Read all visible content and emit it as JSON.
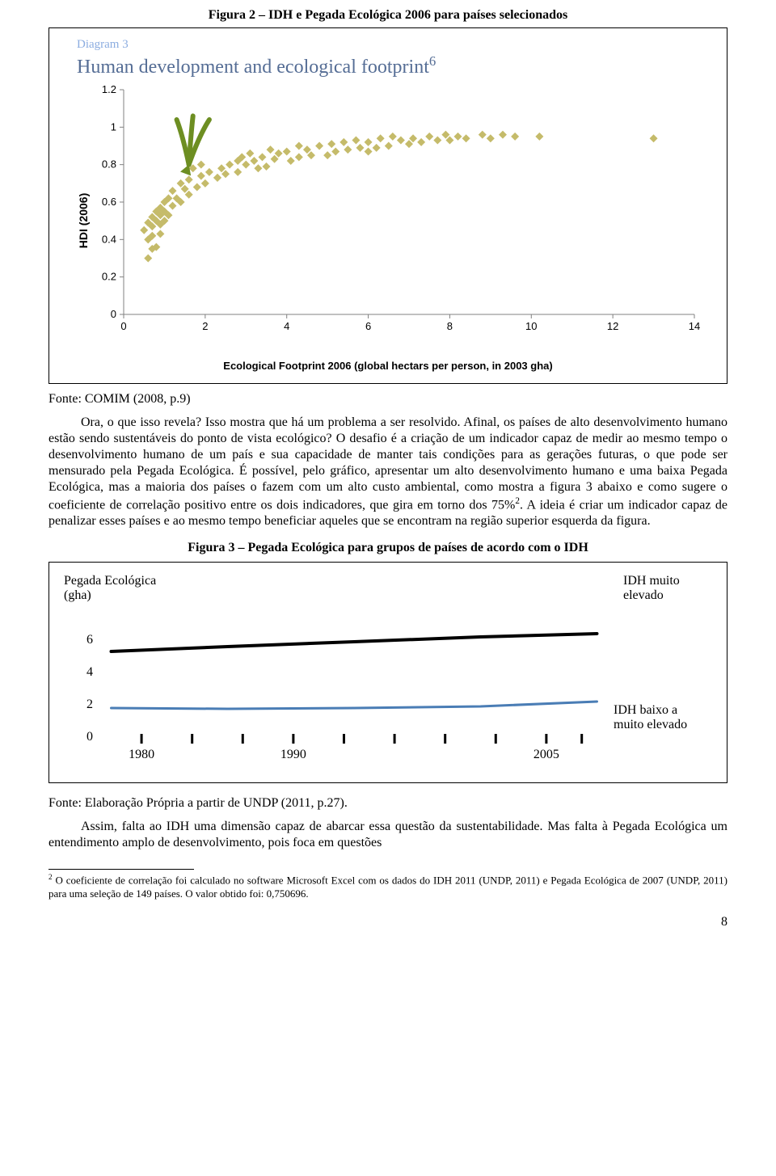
{
  "figure2": {
    "title": "Figura 2 – IDH e Pegada Ecológica 2006 para países selecionados",
    "source": "Fonte: COMIM (2008, p.9)",
    "diagram_label": "Diagram 3",
    "diagram_title_line1": "Human development and ecological footprint",
    "diagram_sup": "6",
    "ylabel": "HDI (2006)",
    "xlabel": "Ecological Footprint 2006 (global hectars per person, in 2003 gha)",
    "chart": {
      "type": "scatter",
      "xlim": [
        0,
        14
      ],
      "ylim": [
        0,
        1.2
      ],
      "xticks": [
        0,
        2,
        4,
        6,
        8,
        10,
        12,
        14
      ],
      "yticks": [
        0,
        0.2,
        0.4,
        0.6,
        0.8,
        1,
        1.2
      ],
      "tick_font_family": "Arial",
      "tick_fontsize": 13,
      "tick_color": "#000000",
      "axis_color": "#808080",
      "tick_mark_len": 5,
      "marker": "diamond",
      "marker_size": 10,
      "marker_color": "#c5bb6a",
      "background_color": "#ffffff",
      "arrow_color": "#6d8e22",
      "arrow_stroke_width": 6,
      "arrow_tails": [
        [
          2.1,
          1.04
        ],
        [
          1.7,
          1.06
        ],
        [
          1.3,
          1.04
        ]
      ],
      "arrow_head": [
        1.6,
        0.8
      ],
      "points": [
        [
          0.6,
          0.3
        ],
        [
          0.7,
          0.35
        ],
        [
          0.8,
          0.36
        ],
        [
          0.6,
          0.4
        ],
        [
          0.7,
          0.42
        ],
        [
          0.9,
          0.43
        ],
        [
          0.5,
          0.45
        ],
        [
          0.7,
          0.47
        ],
        [
          0.9,
          0.48
        ],
        [
          0.6,
          0.49
        ],
        [
          0.8,
          0.5
        ],
        [
          1.0,
          0.5
        ],
        [
          0.7,
          0.52
        ],
        [
          0.9,
          0.53
        ],
        [
          1.1,
          0.53
        ],
        [
          0.8,
          0.55
        ],
        [
          1.0,
          0.55
        ],
        [
          0.9,
          0.57
        ],
        [
          1.2,
          0.58
        ],
        [
          1.0,
          0.6
        ],
        [
          1.4,
          0.6
        ],
        [
          1.1,
          0.62
        ],
        [
          1.3,
          0.62
        ],
        [
          1.6,
          0.64
        ],
        [
          1.2,
          0.66
        ],
        [
          1.5,
          0.67
        ],
        [
          1.8,
          0.68
        ],
        [
          1.4,
          0.7
        ],
        [
          2.0,
          0.7
        ],
        [
          1.6,
          0.72
        ],
        [
          2.3,
          0.73
        ],
        [
          1.9,
          0.74
        ],
        [
          2.5,
          0.75
        ],
        [
          2.1,
          0.76
        ],
        [
          2.8,
          0.76
        ],
        [
          2.4,
          0.78
        ],
        [
          1.7,
          0.78
        ],
        [
          3.3,
          0.78
        ],
        [
          2.6,
          0.8
        ],
        [
          3.0,
          0.8
        ],
        [
          1.9,
          0.8
        ],
        [
          3.5,
          0.79
        ],
        [
          2.8,
          0.82
        ],
        [
          3.2,
          0.82
        ],
        [
          3.7,
          0.83
        ],
        [
          2.3,
          0.73
        ],
        [
          4.1,
          0.82
        ],
        [
          3.4,
          0.84
        ],
        [
          2.9,
          0.84
        ],
        [
          4.3,
          0.84
        ],
        [
          3.8,
          0.86
        ],
        [
          4.6,
          0.85
        ],
        [
          3.1,
          0.86
        ],
        [
          5.0,
          0.85
        ],
        [
          4.0,
          0.87
        ],
        [
          5.2,
          0.87
        ],
        [
          4.5,
          0.88
        ],
        [
          5.5,
          0.88
        ],
        [
          3.6,
          0.88
        ],
        [
          6.0,
          0.87
        ],
        [
          4.8,
          0.9
        ],
        [
          5.8,
          0.89
        ],
        [
          6.2,
          0.89
        ],
        [
          5.1,
          0.91
        ],
        [
          6.5,
          0.9
        ],
        [
          4.3,
          0.9
        ],
        [
          5.4,
          0.92
        ],
        [
          7.0,
          0.91
        ],
        [
          6.0,
          0.92
        ],
        [
          7.3,
          0.92
        ],
        [
          5.7,
          0.93
        ],
        [
          6.8,
          0.93
        ],
        [
          7.7,
          0.93
        ],
        [
          6.3,
          0.94
        ],
        [
          8.0,
          0.93
        ],
        [
          7.1,
          0.94
        ],
        [
          8.4,
          0.94
        ],
        [
          6.6,
          0.95
        ],
        [
          7.5,
          0.95
        ],
        [
          9.0,
          0.94
        ],
        [
          8.2,
          0.95
        ],
        [
          9.6,
          0.95
        ],
        [
          7.9,
          0.96
        ],
        [
          8.8,
          0.96
        ],
        [
          9.3,
          0.96
        ],
        [
          10.2,
          0.95
        ],
        [
          13.0,
          0.94
        ]
      ]
    }
  },
  "paragraph1": {
    "lead": "Ora, o que isso revela? Isso mostra que há um problema a ser resolvido. Afinal, os países de alto desenvolvimento humano estão sendo sustentáveis do ponto de vista ecológico? O desafio é a criação de um indicador capaz de medir ao mesmo tempo o desenvolvimento humano de um país e sua capacidade de manter tais condições para as gerações futuras, o que pode ser mensurado pela Pegada Ecológica. É possível, pelo gráfico, apresentar um alto desenvolvimento humano e uma baixa Pegada Ecológica, mas a maioria dos países o fazem com um alto custo ambiental, como mostra a figura 3 abaixo e como sugere o coeficiente de correlação positivo entre os dois indicadores, que gira em torno dos 75%",
    "sup": "2",
    "tail": ". A ideia é criar um indicador capaz de penalizar esses países e ao mesmo tempo beneficiar aqueles que se encontram na região superior esquerda da figura."
  },
  "figure3": {
    "title": "Figura 3 – Pegada Ecológica para grupos de países de acordo com o IDH",
    "ylabel_line1": "Pegada Ecológica",
    "ylabel_line2": "(gha)",
    "series_top_label": "IDH muito elevado",
    "series_bottom_label": "IDH baixo a muito elevado",
    "source": "Fonte: Elaboração Própria a partir de UNDP (2011, p.27).",
    "chart": {
      "type": "line",
      "ylim": [
        0,
        8
      ],
      "yticks": [
        0,
        2,
        4,
        6
      ],
      "xticks_pos": [
        0.08,
        0.38,
        0.88
      ],
      "xticks_labels": [
        "1980",
        "1990",
        "2005"
      ],
      "tick_fontsize": 16,
      "tick_font_family": "Times New Roman",
      "background_color": "#ffffff",
      "axis_stroke": "#000000",
      "axis_stroke_width": 2,
      "tick_mark_len": 10,
      "series": [
        {
          "name": "idh-muito-elevado",
          "color": "#000000",
          "stroke_width": 4,
          "points": [
            [
              0.02,
              5.2
            ],
            [
              0.25,
              5.5
            ],
            [
              0.5,
              5.8
            ],
            [
              0.75,
              6.1
            ],
            [
              0.98,
              6.3
            ]
          ]
        },
        {
          "name": "idh-baixo-a-muito-elevado",
          "color": "#4a7db5",
          "stroke_width": 3,
          "points": [
            [
              0.02,
              1.7
            ],
            [
              0.25,
              1.65
            ],
            [
              0.5,
              1.7
            ],
            [
              0.75,
              1.8
            ],
            [
              0.98,
              2.1
            ]
          ]
        }
      ]
    }
  },
  "paragraph2": "Assim, falta ao IDH uma dimensão capaz de abarcar essa questão da sustentabilidade. Mas falta à Pegada Ecológica um entendimento amplo de desenvolvimento, pois foca em questões",
  "footnote": {
    "sup": "2",
    "text": " O coeficiente de correlação foi calculado no software Microsoft Excel com os dados do IDH 2011 (UNDP, 2011) e Pegada Ecológica de 2007 (UNDP, 2011) para uma seleção de 149 países. O valor obtido foi: 0,750696."
  },
  "page_number": "8"
}
